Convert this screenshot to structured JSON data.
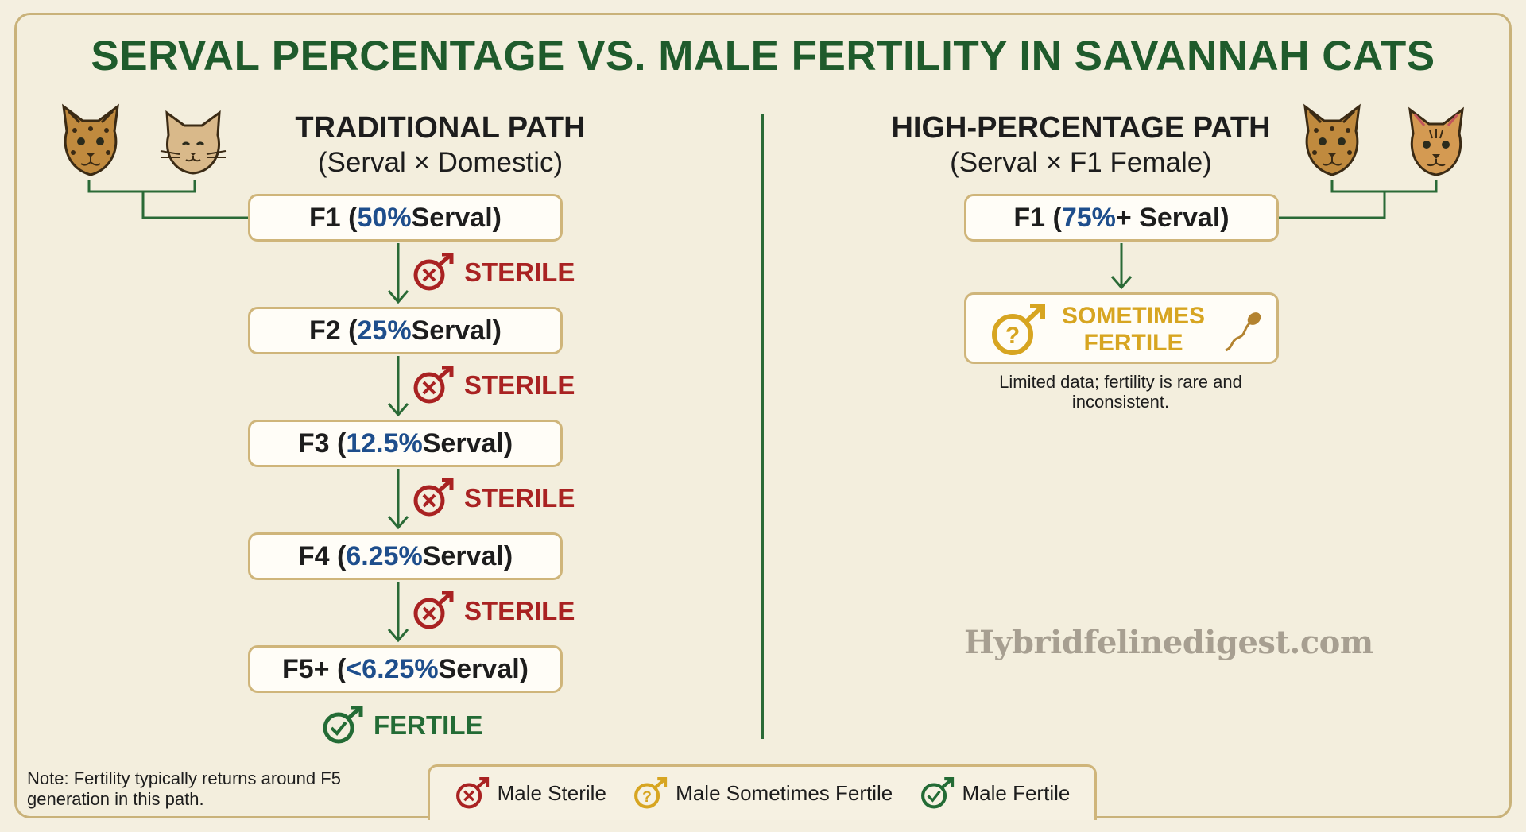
{
  "title": "SERVAL PERCENTAGE VS. MALE FERTILITY IN SAVANNAH CATS",
  "traditional": {
    "title": "TRADITIONAL PATH",
    "subtitle": "(Serval × Domestic)",
    "generations": [
      {
        "gen": "F1",
        "pct": "50%",
        "suffix": " Serval)",
        "status": "STERILE"
      },
      {
        "gen": "F2",
        "pct": "25%",
        "suffix": " Serval)",
        "status": "STERILE"
      },
      {
        "gen": "F3",
        "pct": "12.5%",
        "suffix": " Serval)",
        "status": "STERILE"
      },
      {
        "gen": "F4",
        "pct": "6.25%",
        "suffix": " Serval)",
        "status": "STERILE"
      },
      {
        "gen": "F5+",
        "pct": "<6.25%",
        "suffix": " Serval)",
        "status": "FERTILE"
      }
    ]
  },
  "high": {
    "title": "HIGH-PERCENTAGE PATH",
    "subtitle": "(Serval × F1 Female)",
    "gen": "F1",
    "pct": "75%",
    "suffix": "+ Serval)",
    "status_line1": "SOMETIMES",
    "status_line2": "FERTILE",
    "note": "Limited data; fertility is rare and inconsistent."
  },
  "watermark": "Hybridfelinedigest.com",
  "footnote": "Note: Fertility typically returns around F5 generation in this path.",
  "legend": {
    "sterile": "Male Sterile",
    "sometimes": "Male Sometimes Fertile",
    "fertile": "Male Fertile"
  },
  "colors": {
    "title_green": "#1f5b2c",
    "sterile_red": "#a92222",
    "fertile_green": "#236b35",
    "sometimes_gold": "#d7a521",
    "percent_blue": "#1e4e8c",
    "box_border": "#cfb57a"
  },
  "icons": {
    "serval": "serval-face-icon",
    "domestic": "domestic-cat-face-icon",
    "f1_female": "f1-female-cat-face-icon",
    "sterile": "male-sterile-icon",
    "sometimes": "male-sometimes-fertile-icon",
    "fertile": "male-fertile-icon",
    "sperm": "sperm-icon"
  }
}
